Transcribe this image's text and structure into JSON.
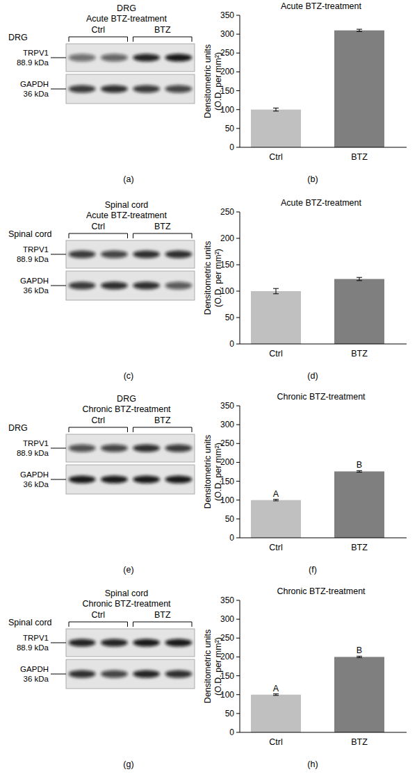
{
  "chart_data": [
    {
      "type": "bar",
      "title": "Acute BTZ-treatment",
      "y_label": [
        "Densitometric units",
        "(O.D. per mm²)"
      ],
      "categories": [
        "Ctrl",
        "BTZ"
      ],
      "values": [
        100,
        310
      ],
      "errors": [
        4,
        3
      ],
      "colors": [
        "#c0c0c0",
        "#7f7f7f"
      ],
      "ylim": [
        0,
        350
      ],
      "yticks": [
        0,
        50,
        100,
        150,
        200,
        250,
        300,
        350
      ],
      "panel_label": "(b)"
    },
    {
      "type": "bar",
      "title": "Acute BTZ-treatment",
      "y_label": [
        "Densitometric units",
        "(O.D. per mm²)"
      ],
      "categories": [
        "Ctrl",
        "BTZ"
      ],
      "values": [
        100,
        123
      ],
      "errors": [
        5,
        3
      ],
      "colors": [
        "#c0c0c0",
        "#7f7f7f"
      ],
      "ylim": [
        0,
        250
      ],
      "yticks": [
        0,
        50,
        100,
        150,
        200,
        250
      ],
      "panel_label": "(d)"
    },
    {
      "type": "bar",
      "title": "Chronic BTZ-treatment",
      "y_label": [
        "Densitometric units",
        "(O.D. per mm²)"
      ],
      "categories": [
        "Ctrl",
        "BTZ"
      ],
      "values": [
        100,
        176
      ],
      "errors": [
        2,
        2
      ],
      "annotations": [
        "A",
        "B"
      ],
      "colors": [
        "#c0c0c0",
        "#7f7f7f"
      ],
      "ylim": [
        0,
        350
      ],
      "yticks": [
        0,
        50,
        100,
        150,
        200,
        250,
        300,
        350
      ],
      "panel_label": "(f)"
    },
    {
      "type": "bar",
      "title": "Chronic BTZ-treatment",
      "y_label": [
        "Densitometric units",
        "(O.D. per mm²)"
      ],
      "categories": [
        "Ctrl",
        "BTZ"
      ],
      "values": [
        100,
        200
      ],
      "errors": [
        2,
        2
      ],
      "annotations": [
        "A",
        "B"
      ],
      "colors": [
        "#c0c0c0",
        "#7f7f7f"
      ],
      "ylim": [
        0,
        350
      ],
      "yticks": [
        0,
        50,
        100,
        150,
        200,
        250,
        300,
        350
      ],
      "panel_label": "(h)"
    }
  ],
  "blots": [
    {
      "title": [
        "DRG",
        "Acute BTZ-treatment"
      ],
      "tissue": "DRG",
      "groups": [
        "Ctrl",
        "BTZ"
      ],
      "rows": [
        {
          "protein": "TRPV1",
          "size": "88.9 kDa",
          "bands": [
            0.55,
            0.6,
            0.9,
            0.95
          ]
        },
        {
          "protein": "GAPDH",
          "size": "36 kDa",
          "bands": [
            0.8,
            0.85,
            0.8,
            0.75
          ]
        }
      ],
      "panel_label": "(a)"
    },
    {
      "title": [
        "Spinal cord",
        "Acute BTZ-treatment"
      ],
      "tissue": "Spinal cord",
      "groups": [
        "Ctrl",
        "BTZ"
      ],
      "rows": [
        {
          "protein": "TRPV1",
          "size": "88.9 kDa",
          "bands": [
            0.8,
            0.75,
            0.85,
            0.85
          ]
        },
        {
          "protein": "GAPDH",
          "size": "36 kDa",
          "bands": [
            0.8,
            0.85,
            0.85,
            0.65
          ]
        }
      ],
      "panel_label": "(c)"
    },
    {
      "title": [
        "DRG",
        "Chronic BTZ-treatment"
      ],
      "tissue": "DRG",
      "groups": [
        "Ctrl",
        "BTZ"
      ],
      "rows": [
        {
          "protein": "TRPV1",
          "size": "88.9 kDa",
          "bands": [
            0.7,
            0.75,
            0.85,
            0.8
          ]
        },
        {
          "protein": "GAPDH",
          "size": "36 kDa",
          "bands": [
            0.95,
            0.95,
            0.95,
            0.95
          ]
        }
      ],
      "panel_label": "(e)"
    },
    {
      "title": [
        "Spinal cord",
        "Chronic BTZ-treatment"
      ],
      "tissue": "Spinal cord",
      "groups": [
        "Ctrl",
        "BTZ"
      ],
      "rows": [
        {
          "protein": "TRPV1",
          "size": "88.9 kDa",
          "bands": [
            0.9,
            0.9,
            0.95,
            0.95
          ]
        },
        {
          "protein": "GAPDH",
          "size": "36 kDa",
          "bands": [
            0.85,
            0.75,
            0.9,
            0.85
          ]
        }
      ],
      "panel_label": "(g)"
    }
  ]
}
